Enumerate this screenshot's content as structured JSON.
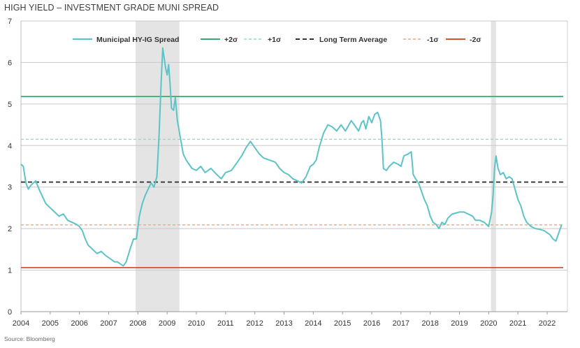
{
  "title": "HIGH YIELD – INVESTMENT GRADE MUNI SPREAD",
  "source": "Source: Bloomberg",
  "chart_data": {
    "type": "line",
    "title": "HIGH YIELD – INVESTMENT GRADE MUNI SPREAD",
    "xlabel": "",
    "ylabel": "",
    "xlim": [
      2004.0,
      2022.55
    ],
    "ylim": [
      0,
      7
    ],
    "y_ticks": [
      0,
      1,
      2,
      3,
      4,
      5,
      6,
      7
    ],
    "x_ticks": [
      "2004",
      "2005",
      "2006",
      "2007",
      "2008",
      "2009",
      "2010",
      "2011",
      "2012",
      "2013",
      "2014",
      "2015",
      "2016",
      "2017",
      "2018",
      "2019",
      "2020",
      "2021",
      "2022"
    ],
    "grid": true,
    "legend_position": "top",
    "recession_shading": [
      {
        "start": 2007.92,
        "end": 2009.42
      },
      {
        "start": 2020.08,
        "end": 2020.25
      }
    ],
    "reference_lines": [
      {
        "name": "+2σ",
        "value": 5.18,
        "color": "#3aaa6e",
        "style": "solid"
      },
      {
        "name": "+1σ",
        "value": 4.15,
        "color": "#8fd8c8",
        "style": "dashed"
      },
      {
        "name": "Long Term Average",
        "value": 3.12,
        "color": "#333333",
        "style": "dashed"
      },
      {
        "name": "-1σ",
        "value": 2.09,
        "color": "#f0a58a",
        "style": "dashed"
      },
      {
        "name": "-2σ",
        "value": 1.06,
        "color": "#d4502e",
        "style": "solid"
      }
    ],
    "series": [
      {
        "name": "Municipal HY-IG Spread",
        "color": "#5cc3c6",
        "x": [
          2004.0,
          2004.08,
          2004.17,
          2004.25,
          2004.35,
          2004.5,
          2004.65,
          2004.75,
          2004.85,
          2005.0,
          2005.15,
          2005.3,
          2005.45,
          2005.6,
          2005.75,
          2005.9,
          2006.0,
          2006.1,
          2006.2,
          2006.3,
          2006.45,
          2006.6,
          2006.75,
          2006.9,
          2007.0,
          2007.1,
          2007.2,
          2007.3,
          2007.4,
          2007.5,
          2007.6,
          2007.75,
          2007.85,
          2007.95,
          2008.05,
          2008.15,
          2008.25,
          2008.35,
          2008.45,
          2008.55,
          2008.65,
          2008.72,
          2008.8,
          2008.85,
          2008.9,
          2008.95,
          2009.0,
          2009.05,
          2009.1,
          2009.15,
          2009.22,
          2009.28,
          2009.35,
          2009.45,
          2009.55,
          2009.65,
          2009.75,
          2009.85,
          2010.0,
          2010.15,
          2010.3,
          2010.5,
          2010.7,
          2010.85,
          2011.0,
          2011.2,
          2011.4,
          2011.55,
          2011.7,
          2011.85,
          2012.0,
          2012.15,
          2012.3,
          2012.5,
          2012.7,
          2012.85,
          2013.0,
          2013.15,
          2013.3,
          2013.45,
          2013.6,
          2013.75,
          2013.9,
          2014.0,
          2014.1,
          2014.2,
          2014.35,
          2014.5,
          2014.65,
          2014.8,
          2014.95,
          2015.1,
          2015.3,
          2015.45,
          2015.55,
          2015.65,
          2015.72,
          2015.8,
          2015.9,
          2016.0,
          2016.1,
          2016.2,
          2016.3,
          2016.35,
          2016.4,
          2016.5,
          2016.6,
          2016.75,
          2016.9,
          2017.0,
          2017.1,
          2017.25,
          2017.35,
          2017.42,
          2017.5,
          2017.6,
          2017.7,
          2017.8,
          2017.9,
          2018.0,
          2018.1,
          2018.2,
          2018.3,
          2018.4,
          2018.5,
          2018.6,
          2018.75,
          2018.9,
          2019.0,
          2019.15,
          2019.3,
          2019.45,
          2019.55,
          2019.7,
          2019.85,
          2020.0,
          2020.1,
          2020.15,
          2020.2,
          2020.25,
          2020.32,
          2020.4,
          2020.5,
          2020.6,
          2020.7,
          2020.8,
          2020.9,
          2021.0,
          2021.1,
          2021.2,
          2021.3,
          2021.45,
          2021.6,
          2021.75,
          2021.9,
          2022.0,
          2022.1,
          2022.2,
          2022.3,
          2022.4,
          2022.5
        ],
        "values": [
          3.55,
          3.5,
          3.1,
          2.95,
          3.05,
          3.15,
          2.9,
          2.75,
          2.6,
          2.5,
          2.4,
          2.3,
          2.35,
          2.2,
          2.15,
          2.1,
          2.05,
          1.95,
          1.75,
          1.6,
          1.5,
          1.4,
          1.45,
          1.35,
          1.3,
          1.25,
          1.2,
          1.2,
          1.15,
          1.1,
          1.2,
          1.55,
          1.75,
          1.75,
          2.3,
          2.6,
          2.8,
          2.95,
          3.1,
          3.0,
          3.25,
          4.2,
          5.6,
          6.35,
          6.1,
          5.85,
          5.7,
          5.95,
          5.5,
          4.9,
          4.85,
          5.15,
          4.6,
          4.2,
          3.8,
          3.65,
          3.55,
          3.45,
          3.4,
          3.5,
          3.35,
          3.45,
          3.3,
          3.2,
          3.35,
          3.4,
          3.6,
          3.75,
          3.95,
          4.1,
          3.95,
          3.8,
          3.7,
          3.65,
          3.6,
          3.45,
          3.35,
          3.3,
          3.2,
          3.15,
          3.1,
          3.25,
          3.5,
          3.55,
          3.65,
          3.95,
          4.3,
          4.5,
          4.45,
          4.35,
          4.5,
          4.35,
          4.6,
          4.45,
          4.35,
          4.55,
          4.6,
          4.4,
          4.7,
          4.55,
          4.75,
          4.8,
          4.6,
          4.15,
          3.45,
          3.4,
          3.5,
          3.6,
          3.55,
          3.5,
          3.75,
          3.8,
          3.85,
          3.3,
          3.2,
          3.1,
          2.9,
          2.7,
          2.55,
          2.3,
          2.15,
          2.1,
          2.0,
          2.15,
          2.1,
          2.25,
          2.35,
          2.38,
          2.4,
          2.4,
          2.35,
          2.3,
          2.2,
          2.2,
          2.15,
          2.05,
          2.4,
          2.8,
          3.45,
          3.75,
          3.45,
          3.3,
          3.35,
          3.2,
          3.25,
          3.2,
          2.95,
          2.7,
          2.55,
          2.3,
          2.15,
          2.05,
          2.0,
          1.98,
          1.95,
          1.9,
          1.85,
          1.75,
          1.7,
          1.9,
          2.1
        ]
      }
    ]
  }
}
